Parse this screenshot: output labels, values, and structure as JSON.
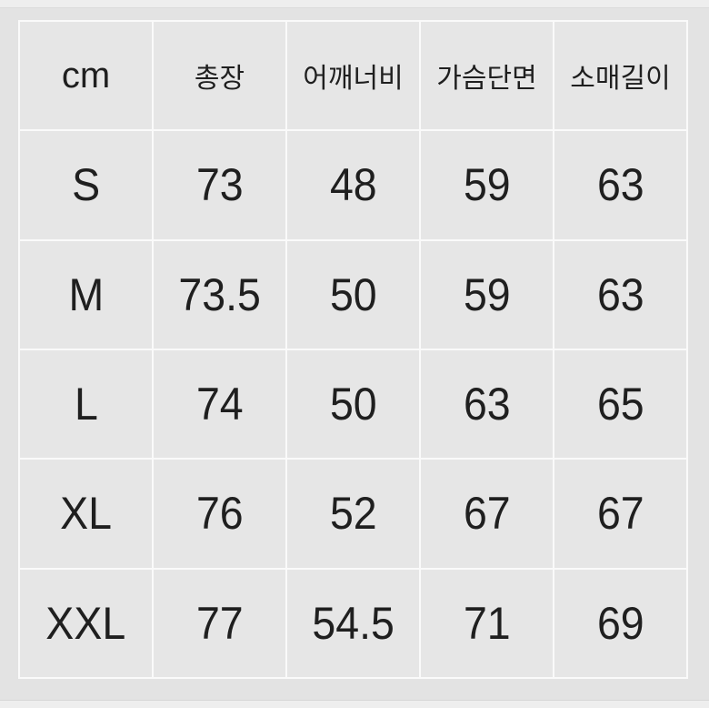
{
  "colors": {
    "page_background": "#e3e3e3",
    "cell_background": "#e6e6e6",
    "gridline": "#fafafa",
    "text": "#1f1f1f"
  },
  "chart_data": {
    "type": "table",
    "columns": [
      "cm",
      "총장",
      "어깨너비",
      "가슴단면",
      "소매길이"
    ],
    "rows": [
      [
        "S",
        "73",
        "48",
        "59",
        "63"
      ],
      [
        "M",
        "73.5",
        "50",
        "59",
        "63"
      ],
      [
        "L",
        "74",
        "50",
        "63",
        "65"
      ],
      [
        "XL",
        "76",
        "52",
        "67",
        "67"
      ],
      [
        "XXL",
        "77",
        "54.5",
        "71",
        "69"
      ]
    ]
  }
}
